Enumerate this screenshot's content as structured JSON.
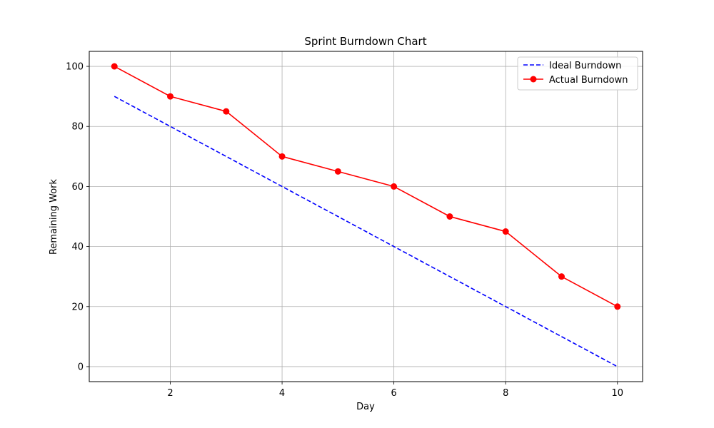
{
  "chart_data": {
    "type": "line",
    "title": "Sprint Burndown Chart",
    "xlabel": "Day",
    "ylabel": "Remaining Work",
    "x": [
      1,
      2,
      3,
      4,
      5,
      6,
      7,
      8,
      9,
      10
    ],
    "xlim": [
      0.55,
      10.45
    ],
    "ylim": [
      -5,
      105
    ],
    "xticks": [
      2,
      4,
      6,
      8,
      10
    ],
    "yticks": [
      0,
      20,
      40,
      60,
      80,
      100
    ],
    "grid": true,
    "legend_position": "top-right",
    "series": [
      {
        "name": "Ideal Burndown",
        "values": [
          90,
          80,
          70,
          60,
          50,
          40,
          30,
          20,
          10,
          0
        ],
        "color": "#0000ff",
        "style": "dashed",
        "marker": "none"
      },
      {
        "name": "Actual Burndown",
        "values": [
          100,
          90,
          85,
          70,
          65,
          60,
          50,
          45,
          30,
          20
        ],
        "color": "#ff0000",
        "style": "solid",
        "marker": "circle"
      }
    ]
  }
}
